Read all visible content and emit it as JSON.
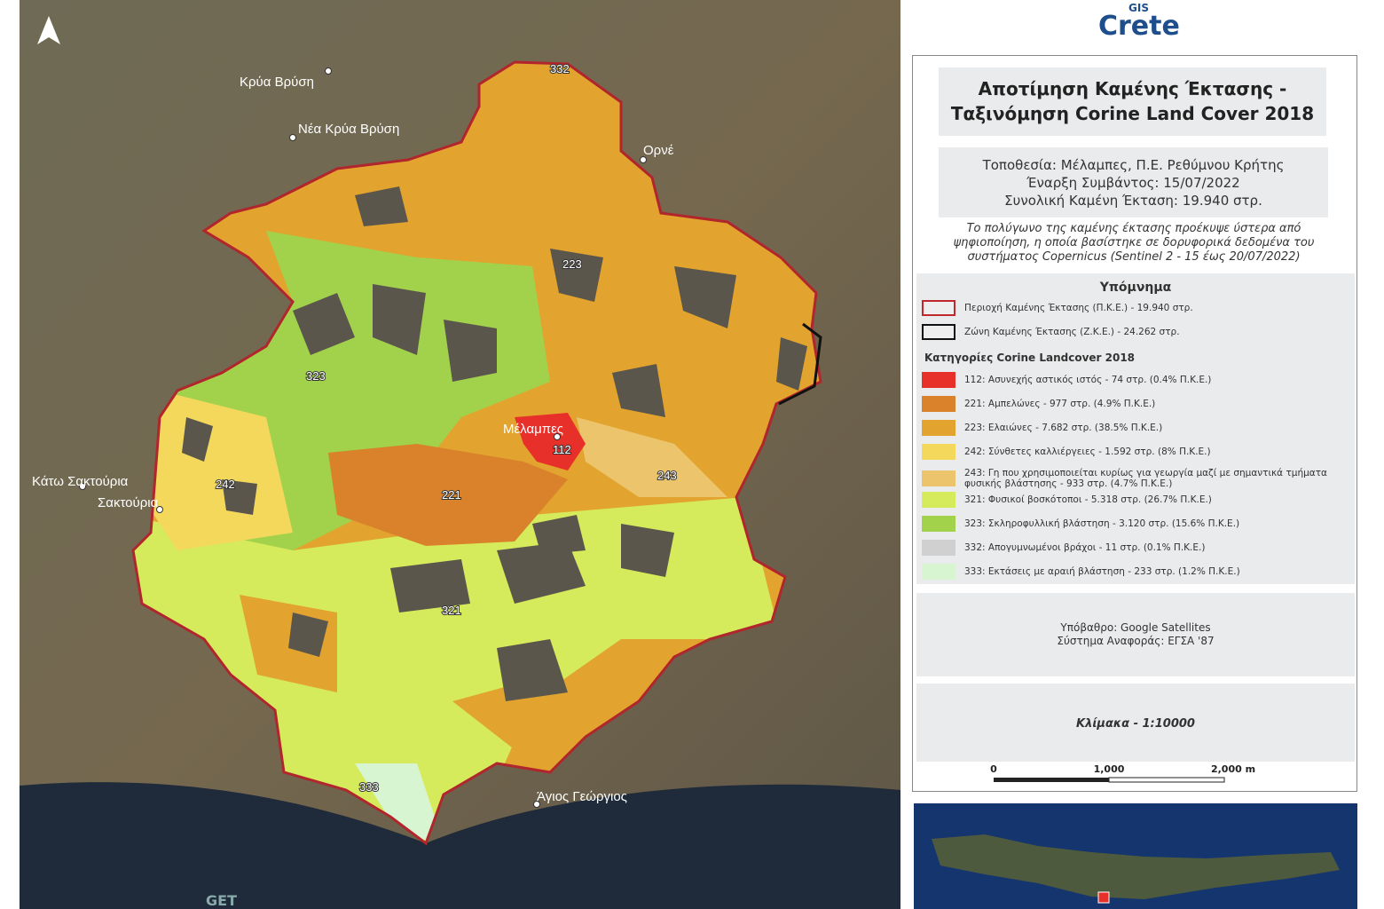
{
  "map": {
    "places": [
      "Κρύα Βρύση",
      "Νέα Κρύα Βρύση",
      "Ορνέ",
      "Κάτω Σακτούρια",
      "Σακτούρια",
      "Άγιος Γεώργιος",
      "Μέλαμπες"
    ],
    "zone_codes": [
      "332",
      "223",
      "323",
      "242",
      "112",
      "221",
      "243",
      "321",
      "333"
    ],
    "credit": "GET"
  },
  "logo": {
    "top": "GIS",
    "main": "Crete"
  },
  "panel": {
    "title": [
      "Αποτίμηση Καμένης Έκτασης -",
      "Ταξινόμηση Corine Land Cover 2018"
    ],
    "info": [
      "Τοποθεσία: Μέλαμπες, Π.Ε. Ρεθύμνου Κρήτης",
      "Έναρξη Συμβάντος: 15/07/2022",
      "Συνολική Καμένη Έκταση: 19.940 στρ."
    ],
    "note": "Το πολύγωνο της καμένης έκτασης προέκυψε ύστερα από ψηφιοποίηση, η οποία βασίστηκε σε δορυφορικά δεδομένα του συστήματος Copernicus (Sentinel 2 - 15 έως 20/07/2022)",
    "legend": {
      "title": "Υπόμνημα",
      "boundaries": [
        {
          "label": "Περιοχή Καμένης Έκτασης (Π.Κ.Ε.) - 19.940 στρ.",
          "color": "#c0282d"
        },
        {
          "label": "Ζώνη Καμένης Έκτασης (Ζ.Κ.Ε.) - 24.262 στρ.",
          "color": "#111111"
        }
      ],
      "categories_title": "Κατηγορίες Corine Landcover 2018",
      "categories": [
        {
          "label": "112: Ασυνεχής αστικός ιστός - 74 στρ. (0.4% Π.Κ.Ε.)",
          "color": "#e8302a"
        },
        {
          "label": "221: Αμπελώνες - 977 στρ. (4.9% Π.Κ.Ε.)",
          "color": "#d9822b"
        },
        {
          "label": "223: Ελαιώνες - 7.682 στρ. (38.5% Π.Κ.Ε.)",
          "color": "#e2a42e"
        },
        {
          "label": "242: Σύνθετες καλλιέργειες - 1.592 στρ. (8% Π.Κ.Ε.)",
          "color": "#f3d85c"
        },
        {
          "label": "243: Γη που χρησιμοποιείται κυρίως για γεωργία μαζί με σημαντικά τμήματα φυσικής βλάστησης - 933 στρ. (4.7% Π.Κ.Ε.)",
          "color": "#ebc46c"
        },
        {
          "label": "321: Φυσικοί βοσκότοποι - 5.318 στρ. (26.7% Π.Κ.Ε.)",
          "color": "#d6eb5c"
        },
        {
          "label": "323: Σκληροφυλλική βλάστηση - 3.120 στρ. (15.6% Π.Κ.Ε.)",
          "color": "#a2d24c"
        },
        {
          "label": "332: Απογυμνωμένοι βράχοι - 11 στρ. (0.1% Π.Κ.Ε.)",
          "color": "#d0d0d0"
        },
        {
          "label": "333: Εκτάσεις με αραιή βλάστηση - 233 στρ. (1.2% Π.Κ.Ε.)",
          "color": "#d8f5d2"
        }
      ]
    },
    "basemap": [
      "Υπόβαθρο: Google Satellites",
      "Σύστημα Αναφοράς: ΕΓΣΑ '87"
    ],
    "scale_text": "Κλίμακα - 1:10000",
    "scalebar": [
      "0",
      "1,000",
      "2,000 m"
    ]
  }
}
